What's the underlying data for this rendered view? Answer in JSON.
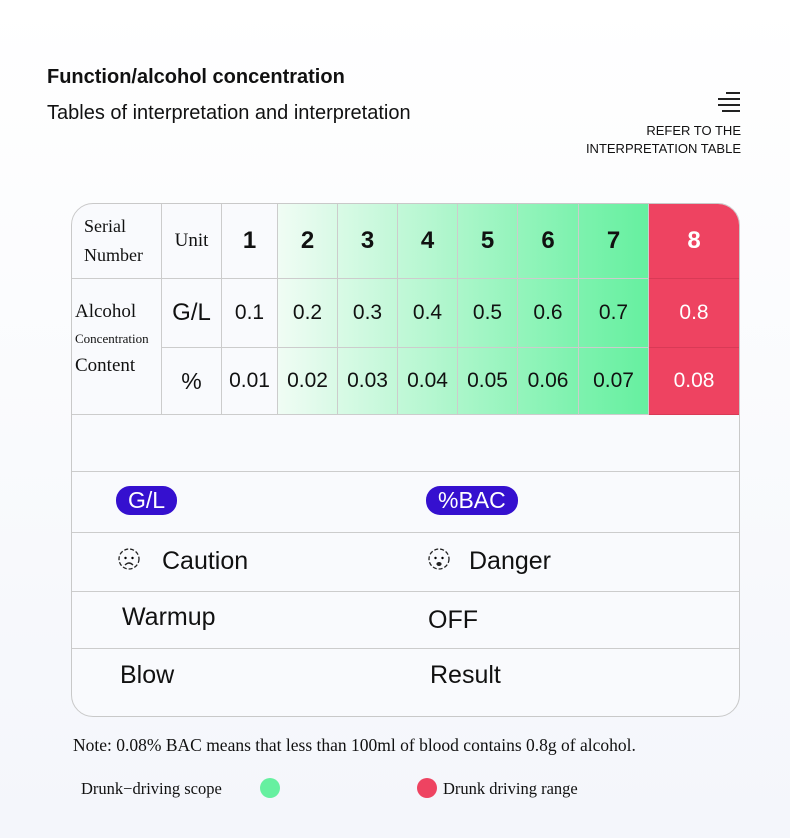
{
  "header": {
    "title": "Function/alcohol concentration",
    "subtitle": "Tables of interpretation and interpretation",
    "refer_line1": "REFER TO THE",
    "refer_line2": "INTERPRETATION TABLE",
    "menu_icon": "hamburger-icon"
  },
  "table": {
    "serial_label_1": "Serial",
    "serial_label_2": "Number",
    "unit_label": "Unit",
    "serial_numbers": [
      "1",
      "2",
      "3",
      "4",
      "5",
      "6",
      "7",
      "8"
    ],
    "alcohol_label": "Alcohol",
    "concentration_label": "Concentration",
    "content_label": "Content",
    "gl_unit": "G/L",
    "pct_unit": "%",
    "gl_values": [
      "0.1",
      "0.2",
      "0.3",
      "0.4",
      "0.5",
      "0.6",
      "0.7",
      "0.8"
    ],
    "pct_values": [
      "0.01",
      "0.02",
      "0.03",
      "0.04",
      "0.05",
      "0.06",
      "0.07",
      "0.08"
    ]
  },
  "display": {
    "badge_gl": "G/L",
    "badge_bac": "%BAC",
    "caution": "Caution",
    "danger": "Danger",
    "warmup": "Warmup",
    "off": "OFF",
    "blow": "Blow",
    "result": "Result"
  },
  "note": "Note: 0.08% BAC means that less than 100ml of blood contains 0.8g of alcohol.",
  "legend": {
    "green_label": "Drunk−driving  scope",
    "red_label": "Drunk driving range"
  },
  "colors": {
    "green": "#66f0a0",
    "red": "#ee4361",
    "badge": "#3510cf"
  }
}
